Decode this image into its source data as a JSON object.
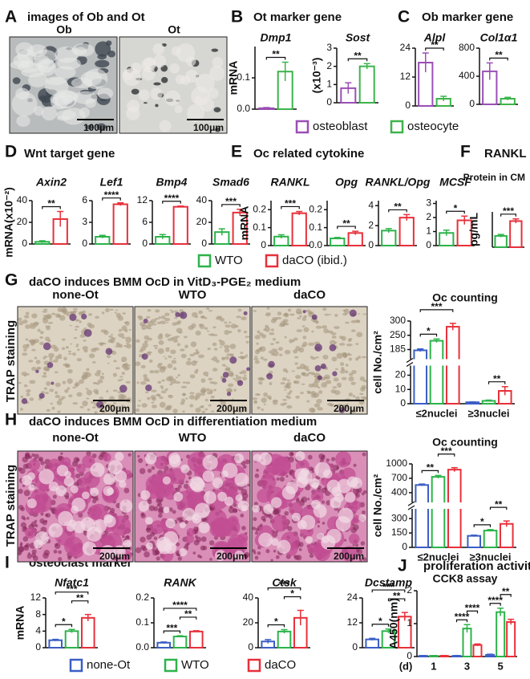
{
  "figure": {
    "panels": [
      {
        "letter": "A",
        "title": "images of Ob and Ot"
      },
      {
        "letter": "B",
        "title": "Ot marker gene"
      },
      {
        "letter": "C",
        "title": "Ob marker gene"
      },
      {
        "letter": "D",
        "title": "Wnt target gene"
      },
      {
        "letter": "E",
        "title": "Oc related cytokine"
      },
      {
        "letter": "F",
        "title": "RANKL"
      },
      {
        "letter": "G",
        "title": "daCO induces BMM OcD in VitD₃-PGE₂ medium"
      },
      {
        "letter": "H",
        "title": "daCO induces BMM OcD in differentiation medium"
      },
      {
        "letter": "I",
        "title": "osteoclast marker"
      },
      {
        "letter": "J",
        "title": "proliferation activity"
      }
    ],
    "images_A": [
      {
        "label": "Ob",
        "scale": "100μm"
      },
      {
        "label": "Ot",
        "scale": "100μm"
      }
    ],
    "images_G": {
      "side_label": "TRAP  staining",
      "items": [
        {
          "label": "none-Ot",
          "scale": "200μm"
        },
        {
          "label": "WTO",
          "scale": "200μm"
        },
        {
          "label": "daCO",
          "scale": "200μm"
        }
      ]
    },
    "images_H": {
      "side_label": "TRAP  staining",
      "items": [
        {
          "label": "none-Ot",
          "scale": "200μm"
        },
        {
          "label": "WTO",
          "scale": "200μm"
        },
        {
          "label": "daCO",
          "scale": "200μm"
        }
      ]
    },
    "legends": [
      {
        "items": [
          {
            "name": "osteoblast",
            "color": "#9b4fb5"
          },
          {
            "name": "osteocyte",
            "color": "#3cb44b"
          }
        ]
      },
      {
        "items": [
          {
            "name": "WTO",
            "color": "#2db34a"
          },
          {
            "name": "daCO (ibid.)",
            "color": "#e8303a"
          }
        ]
      },
      {
        "items": [
          {
            "name": "none-Ot",
            "color": "#3b5ec6"
          },
          {
            "name": "WTO",
            "color": "#2db34a"
          },
          {
            "name": "daCO",
            "color": "#e8303a"
          }
        ]
      }
    ]
  },
  "chart_data": [
    {
      "type": "bar",
      "title": "Dmp1",
      "ylabel": "mRNA",
      "ylim": [
        0,
        0.2
      ],
      "yticks": [
        {
          "value": 0,
          "label": "0.0"
        },
        0.1
      ],
      "series": [
        {
          "color": "#9b4fb5",
          "values": [
            0.003
          ],
          "errors": [
            0.002
          ]
        },
        {
          "color": "#3cb44b",
          "values": [
            0.12
          ],
          "errors": [
            0.03
          ]
        }
      ],
      "significance": [
        {
          "from": 0,
          "to": 1,
          "label": "**"
        }
      ]
    },
    {
      "type": "bar",
      "title": "Sost",
      "ylabel": "(x10⁻³)",
      "ylim": [
        0,
        3
      ],
      "yticks": [
        0,
        1,
        2,
        3
      ],
      "series": [
        {
          "color": "#9b4fb5",
          "values": [
            0.8
          ],
          "errors": [
            0.3
          ]
        },
        {
          "color": "#3cb44b",
          "values": [
            2.0
          ],
          "errors": [
            0.15
          ]
        }
      ],
      "significance": [
        {
          "from": 0,
          "to": 1,
          "label": "**"
        }
      ]
    },
    {
      "type": "bar",
      "title": "Alpl",
      "ylim": [
        0,
        24
      ],
      "yticks": [
        0,
        12,
        24
      ],
      "series": [
        {
          "color": "#9b4fb5",
          "values": [
            18
          ],
          "errors": [
            4
          ]
        },
        {
          "color": "#3cb44b",
          "values": [
            3
          ],
          "errors": [
            1
          ]
        }
      ],
      "significance": [
        {
          "from": 0,
          "to": 1,
          "label": "**"
        }
      ]
    },
    {
      "type": "bar",
      "title": "Col1α1",
      "ylim": [
        0,
        800
      ],
      "yticks": [
        0,
        400,
        800
      ],
      "series": [
        {
          "color": "#9b4fb5",
          "values": [
            470
          ],
          "errors": [
            120
          ]
        },
        {
          "color": "#3cb44b",
          "values": [
            80
          ],
          "errors": [
            20
          ]
        }
      ],
      "significance": [
        {
          "from": 0,
          "to": 1,
          "label": "**"
        }
      ]
    },
    {
      "type": "bar",
      "title": "Axin2",
      "ylabel": "mRNA(x10⁻²)",
      "ylim": [
        0,
        40
      ],
      "yticks": [
        0,
        20,
        40
      ],
      "series": [
        {
          "color": "#2db34a",
          "values": [
            2
          ],
          "errors": [
            1
          ]
        },
        {
          "color": "#e8303a",
          "values": [
            23
          ],
          "errors": [
            7
          ]
        }
      ],
      "significance": [
        {
          "from": 0,
          "to": 1,
          "label": "**"
        }
      ]
    },
    {
      "type": "bar",
      "title": "Lef1",
      "ylim": [
        0,
        6
      ],
      "yticks": [
        0,
        3,
        6
      ],
      "series": [
        {
          "color": "#2db34a",
          "values": [
            1.0
          ],
          "errors": [
            0.2
          ]
        },
        {
          "color": "#e8303a",
          "values": [
            5.5
          ],
          "errors": [
            0.2
          ]
        }
      ],
      "significance": [
        {
          "from": 0,
          "to": 1,
          "label": "****"
        }
      ]
    },
    {
      "type": "bar",
      "title": "Bmp4",
      "ylim": [
        0,
        12
      ],
      "yticks": [
        0,
        6,
        12
      ],
      "series": [
        {
          "color": "#2db34a",
          "values": [
            2
          ],
          "errors": [
            0.6
          ]
        },
        {
          "color": "#e8303a",
          "values": [
            10.3
          ],
          "errors": [
            0.2
          ]
        }
      ],
      "significance": [
        {
          "from": 0,
          "to": 1,
          "label": "****"
        }
      ]
    },
    {
      "type": "bar",
      "title": "Smad6",
      "ylim": [
        0,
        40
      ],
      "yticks": [
        0,
        20,
        40
      ],
      "series": [
        {
          "color": "#2db34a",
          "values": [
            11
          ],
          "errors": [
            3
          ]
        },
        {
          "color": "#e8303a",
          "values": [
            29
          ],
          "errors": [
            3
          ]
        }
      ],
      "significance": [
        {
          "from": 0,
          "to": 1,
          "label": "***"
        }
      ]
    },
    {
      "type": "bar",
      "title": "RANKL",
      "ylabel": "mRNA",
      "ylim": [
        0,
        0.25
      ],
      "yticks": [
        0,
        0.1,
        0.2
      ],
      "series": [
        {
          "color": "#2db34a",
          "values": [
            0.05
          ],
          "errors": [
            0.01
          ]
        },
        {
          "color": "#e8303a",
          "values": [
            0.18
          ],
          "errors": [
            0.01
          ]
        }
      ],
      "significance": [
        {
          "from": 0,
          "to": 1,
          "label": "***"
        }
      ]
    },
    {
      "type": "bar",
      "title": "Opg",
      "ylim": [
        0,
        0.25
      ],
      "yticks": [
        {
          "value": 0,
          "label": "0.0"
        },
        0.1,
        0.2
      ],
      "series": [
        {
          "color": "#2db34a",
          "values": [
            0.04
          ],
          "errors": [
            0.005
          ]
        },
        {
          "color": "#e8303a",
          "values": [
            0.07
          ],
          "errors": [
            0.01
          ]
        }
      ],
      "significance": [
        {
          "from": 0,
          "to": 1,
          "label": "**"
        }
      ]
    },
    {
      "type": "bar",
      "title": "RANKL/Opg",
      "ylim": [
        0,
        4.5
      ],
      "yticks": [
        0,
        2,
        4
      ],
      "series": [
        {
          "color": "#2db34a",
          "values": [
            1.5
          ],
          "errors": [
            0.2
          ]
        },
        {
          "color": "#e8303a",
          "values": [
            2.8
          ],
          "errors": [
            0.3
          ]
        }
      ],
      "significance": [
        {
          "from": 0,
          "to": 1,
          "label": "**"
        }
      ]
    },
    {
      "type": "bar",
      "title": "MCSF",
      "ylim": [
        0,
        3.2
      ],
      "yticks": [
        0,
        1,
        2,
        3
      ],
      "series": [
        {
          "color": "#2db34a",
          "values": [
            0.9
          ],
          "errors": [
            0.2
          ]
        },
        {
          "color": "#e8303a",
          "values": [
            1.8
          ],
          "errors": [
            0.3
          ]
        }
      ],
      "significance": [
        {
          "from": 0,
          "to": 1,
          "label": "*"
        }
      ]
    },
    {
      "type": "bar",
      "title": "Protein in CM",
      "ylabel": "pg/mL",
      "ylim": [
        0,
        5
      ],
      "yticks": [],
      "series": [
        {
          "color": "#2db34a",
          "values": [
            1.6
          ],
          "errors": [
            0.2
          ]
        },
        {
          "color": "#e8303a",
          "values": [
            3.7
          ],
          "errors": [
            0.3
          ]
        }
      ],
      "significance": [
        {
          "from": 0,
          "to": 1,
          "label": "***"
        }
      ]
    },
    {
      "type": "bar",
      "title": "Oc counting",
      "ylabel": "cell No./cm²",
      "ylim": [
        0,
        300
      ],
      "yticks": [
        0,
        10,
        20,
        185,
        250,
        300
      ],
      "axis_break": [
        20,
        185
      ],
      "categories": [
        "≤2nuclei",
        "≥3nuclei"
      ],
      "series": [
        {
          "color": "#3b5ec6",
          "values": [
            180,
            1
          ],
          "errors": [
            8,
            0.3
          ]
        },
        {
          "color": "#2db34a",
          "values": [
            225,
            2
          ],
          "errors": [
            8,
            0.5
          ]
        },
        {
          "color": "#e8303a",
          "values": [
            280,
            9
          ],
          "errors": [
            12,
            3
          ]
        }
      ],
      "significance": [
        {
          "group": 0,
          "from": 0,
          "to": 1,
          "label": "*"
        },
        {
          "group": 0,
          "from": 0,
          "to": 2,
          "label": "***"
        },
        {
          "group": 1,
          "from": 1,
          "to": 2,
          "label": "**"
        }
      ]
    },
    {
      "type": "bar",
      "title": "Oc counting",
      "ylabel": "cell No./cm²",
      "ylim": [
        0,
        1000
      ],
      "yticks": [
        0,
        150,
        300,
        400,
        700,
        1000
      ],
      "axis_break": [
        300,
        400
      ],
      "categories": [
        "≤2nuclei",
        "≥3nuclei"
      ],
      "series": [
        {
          "color": "#3b5ec6",
          "values": [
            560,
            120
          ],
          "errors": [
            20,
            8
          ]
        },
        {
          "color": "#2db34a",
          "values": [
            730,
            175
          ],
          "errors": [
            30,
            10
          ]
        },
        {
          "color": "#e8303a",
          "values": [
            880,
            245
          ],
          "errors": [
            40,
            30
          ]
        }
      ],
      "significance": [
        {
          "group": 0,
          "from": 0,
          "to": 1,
          "label": "**"
        },
        {
          "group": 0,
          "from": 1,
          "to": 2,
          "label": "***"
        },
        {
          "group": 1,
          "from": 0,
          "to": 1,
          "label": "*"
        },
        {
          "group": 1,
          "from": 1,
          "to": 2,
          "label": "**"
        }
      ]
    },
    {
      "type": "bar",
      "title": "Nfatc1",
      "ylabel": "mRNA",
      "ylim": [
        0,
        12
      ],
      "yticks": [
        0,
        4,
        8,
        12
      ],
      "series": [
        {
          "color": "#3b5ec6",
          "values": [
            1.8
          ],
          "errors": [
            0.2
          ]
        },
        {
          "color": "#2db34a",
          "values": [
            4
          ],
          "errors": [
            0.4
          ]
        },
        {
          "color": "#e8303a",
          "values": [
            7.2
          ],
          "errors": [
            0.8
          ]
        }
      ],
      "significance": [
        {
          "from": 0,
          "to": 1,
          "label": "*"
        },
        {
          "from": 1,
          "to": 2,
          "label": "**"
        },
        {
          "from": 0,
          "to": 2,
          "label": "***"
        }
      ]
    },
    {
      "type": "bar",
      "title": "RANK",
      "ylim": [
        0,
        0.2
      ],
      "yticks": [
        {
          "value": 0,
          "label": "0.0"
        },
        0.1,
        0.2
      ],
      "series": [
        {
          "color": "#3b5ec6",
          "values": [
            0.02
          ],
          "errors": [
            0.003
          ]
        },
        {
          "color": "#2db34a",
          "values": [
            0.045
          ],
          "errors": [
            0.003
          ]
        },
        {
          "color": "#e8303a",
          "values": [
            0.065
          ],
          "errors": [
            0.003
          ]
        }
      ],
      "significance": [
        {
          "from": 0,
          "to": 1,
          "label": "***"
        },
        {
          "from": 1,
          "to": 2,
          "label": "**"
        },
        {
          "from": 0,
          "to": 2,
          "label": "****"
        }
      ]
    },
    {
      "type": "bar",
      "title": "Ctsk",
      "ylim": [
        0,
        40
      ],
      "yticks": [
        0,
        20,
        40
      ],
      "series": [
        {
          "color": "#3b5ec6",
          "values": [
            5
          ],
          "errors": [
            1.5
          ]
        },
        {
          "color": "#2db34a",
          "values": [
            13
          ],
          "errors": [
            1.5
          ]
        },
        {
          "color": "#e8303a",
          "values": [
            24
          ],
          "errors": [
            6
          ]
        }
      ],
      "significance": [
        {
          "from": 0,
          "to": 1,
          "label": "*"
        },
        {
          "from": 1,
          "to": 2,
          "label": "*"
        },
        {
          "from": 0,
          "to": 2,
          "label": "***"
        }
      ]
    },
    {
      "type": "bar",
      "title": "Dcstamp",
      "ylim": [
        0,
        24
      ],
      "yticks": [
        0,
        12,
        24
      ],
      "series": [
        {
          "color": "#3b5ec6",
          "values": [
            4
          ],
          "errors": [
            0.5
          ]
        },
        {
          "color": "#2db34a",
          "values": [
            8
          ],
          "errors": [
            1
          ]
        },
        {
          "color": "#e8303a",
          "values": [
            15
          ],
          "errors": [
            2
          ]
        }
      ],
      "significance": [
        {
          "from": 0,
          "to": 1,
          "label": "*"
        },
        {
          "from": 1,
          "to": 2,
          "label": "**"
        },
        {
          "from": 0,
          "to": 2,
          "label": "***"
        }
      ]
    },
    {
      "type": "bar",
      "title": "CCK8 assay",
      "ylabel": "A450(nm)",
      "xlabel": "(d)",
      "ylim": [
        0,
        2
      ],
      "yticks": [
        0,
        1,
        2
      ],
      "categories": [
        "1",
        "3",
        "5"
      ],
      "series": [
        {
          "color": "#3b5ec6",
          "values": [
            0.02,
            0.02,
            0.05
          ],
          "errors": [
            0.01,
            0.01,
            0.02
          ]
        },
        {
          "color": "#2db34a",
          "values": [
            0.02,
            0.85,
            1.35
          ],
          "errors": [
            0.01,
            0.12,
            0.12
          ]
        },
        {
          "color": "#e8303a",
          "values": [
            0.02,
            0.35,
            1.05
          ],
          "errors": [
            0.01,
            0.03,
            0.08
          ]
        }
      ],
      "significance": [
        {
          "group": 1,
          "from": 0,
          "to": 1,
          "label": "****"
        },
        {
          "group": 1,
          "from": 1,
          "to": 2,
          "label": "****"
        },
        {
          "group": 2,
          "from": 0,
          "to": 1,
          "label": "****"
        },
        {
          "group": 2,
          "from": 1,
          "to": 2,
          "label": "**"
        }
      ]
    }
  ]
}
